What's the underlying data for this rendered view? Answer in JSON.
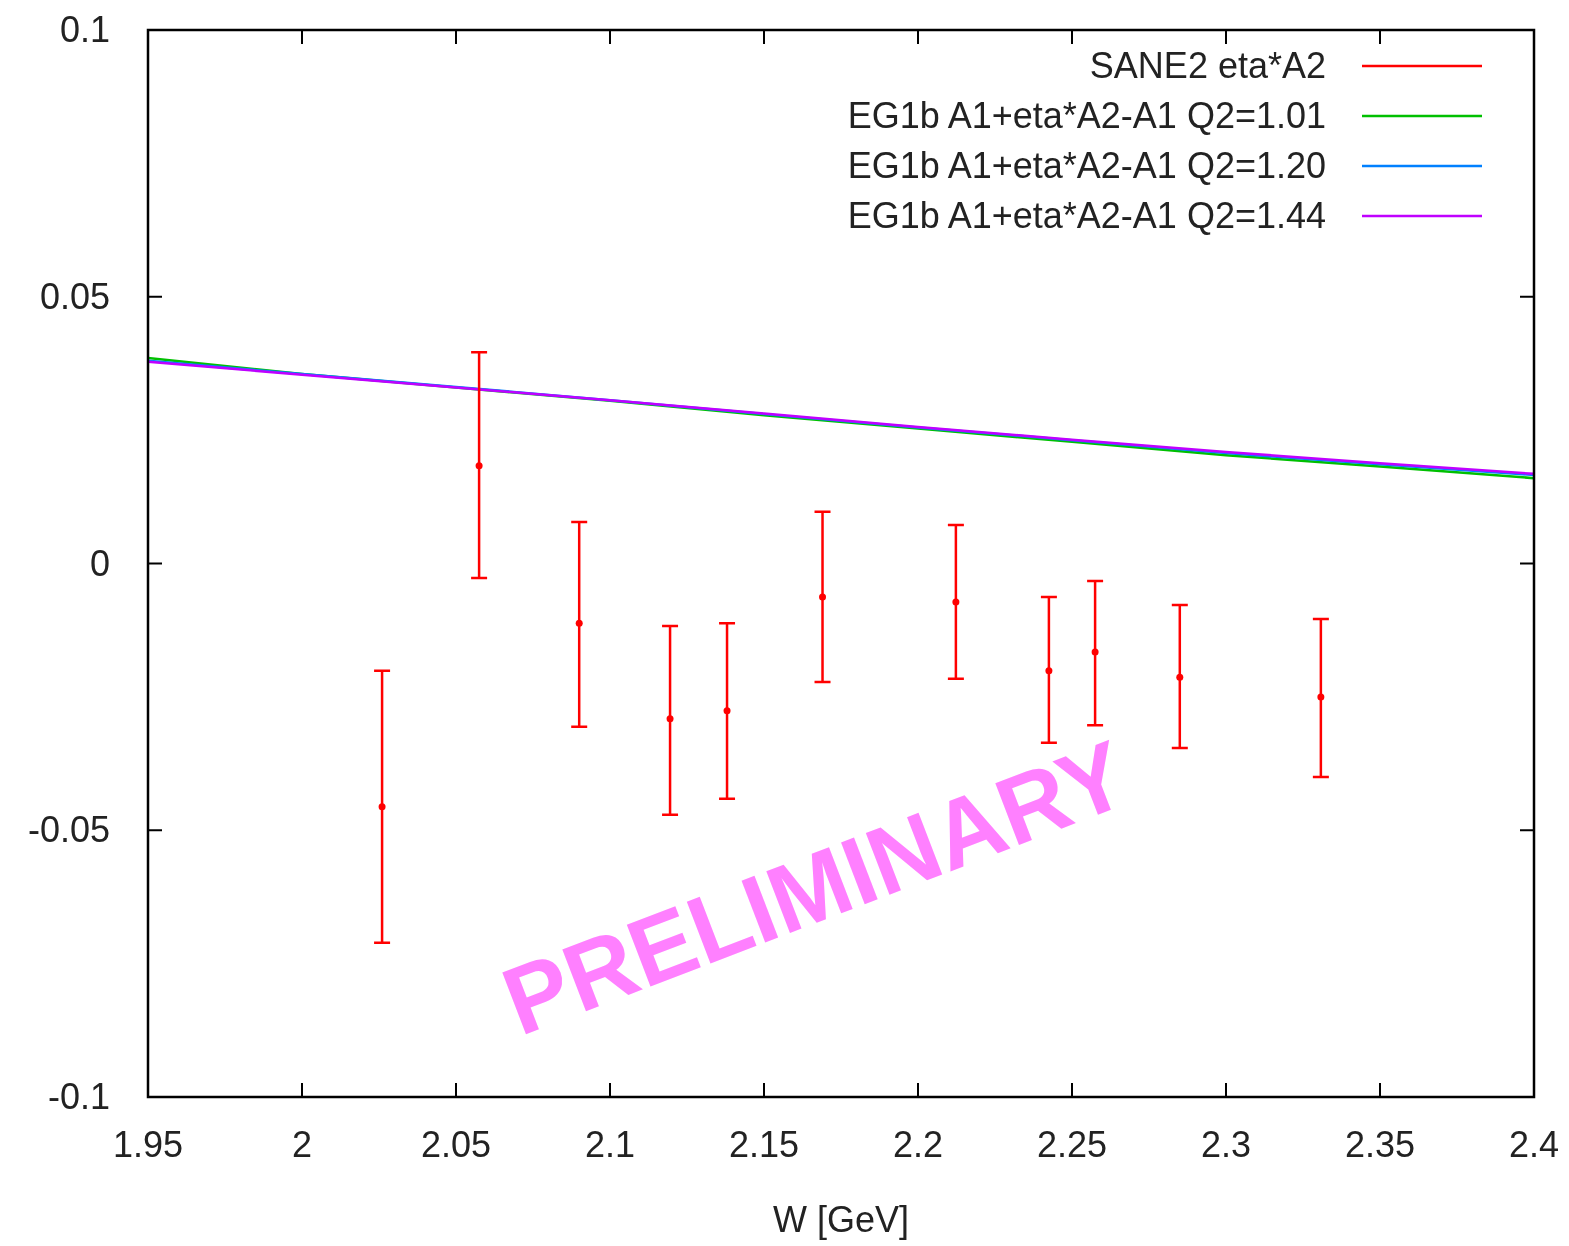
{
  "chart_data": {
    "type": "line",
    "xlabel": "W [GeV]",
    "xlim": [
      1.95,
      2.4
    ],
    "xticks": [
      1.95,
      2,
      2.05,
      2.1,
      2.15,
      2.2,
      2.25,
      2.3,
      2.35,
      2.4
    ],
    "ylim": [
      -0.1,
      0.1
    ],
    "yticks": [
      -0.1,
      -0.05,
      0,
      0.05,
      0.1
    ],
    "grid": false,
    "legend": "top right",
    "annotations": [
      "PRELIMINARY"
    ],
    "series": [
      {
        "name": "SANE2 eta*A2",
        "type": "scatter",
        "color": "#ff0000",
        "x": [
          2.026,
          2.0575,
          2.09,
          2.1195,
          2.138,
          2.169,
          2.2123,
          2.2425,
          2.2575,
          2.285,
          2.3308
        ],
        "values": [
          -0.0456,
          0.0183,
          -0.0112,
          -0.0291,
          -0.0276,
          -0.0063,
          -0.0072,
          -0.0201,
          -0.0166,
          -0.0213,
          -0.025
        ],
        "errors": [
          [
            -0.0711,
            -0.0201
          ],
          [
            -0.0027,
            0.0396
          ],
          [
            -0.0306,
            0.0078
          ],
          [
            -0.0471,
            -0.0117
          ],
          [
            -0.0441,
            -0.0112
          ],
          [
            -0.0222,
            0.0097
          ],
          [
            -0.0216,
            0.0072
          ],
          [
            -0.0336,
            -0.0063
          ],
          [
            -0.0303,
            -0.0033
          ],
          [
            -0.0346,
            -0.0078
          ],
          [
            -0.04,
            -0.0104
          ]
        ]
      },
      {
        "name": "EG1b A1+eta*A2-A1 Q2=1.01",
        "type": "line",
        "color": "#00c000",
        "x": [
          1.95,
          2.0,
          2.05,
          2.1,
          2.15,
          2.2,
          2.25,
          2.3,
          2.35,
          2.4
        ],
        "values": [
          0.0385,
          0.0355,
          0.033,
          0.0305,
          0.0278,
          0.0253,
          0.0228,
          0.0203,
          0.0182,
          0.016
        ]
      },
      {
        "name": "EG1b A1+eta*A2-A1 Q2=1.20",
        "type": "line",
        "color": "#0080ff",
        "x": [
          1.95,
          2.0,
          2.05,
          2.1,
          2.15,
          2.2,
          2.25,
          2.3,
          2.35,
          2.4
        ],
        "values": [
          0.038,
          0.0355,
          0.0331,
          0.0306,
          0.028,
          0.0255,
          0.0231,
          0.0207,
          0.0186,
          0.0166
        ]
      },
      {
        "name": "EG1b A1+eta*A2-A1 Q2=1.44",
        "type": "line",
        "color": "#c000ff",
        "x": [
          1.95,
          2.0,
          2.05,
          2.1,
          2.15,
          2.2,
          2.25,
          2.3,
          2.35,
          2.4
        ],
        "values": [
          0.0378,
          0.0354,
          0.033,
          0.0306,
          0.0281,
          0.0256,
          0.0232,
          0.0209,
          0.0188,
          0.0168
        ]
      }
    ]
  }
}
